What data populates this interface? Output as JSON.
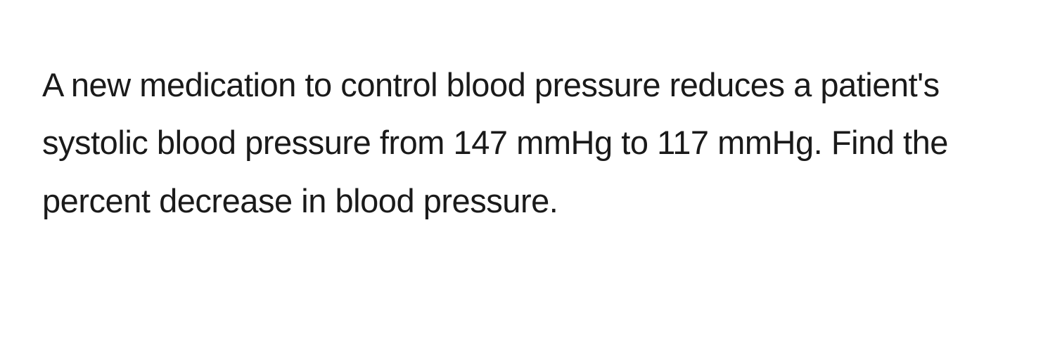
{
  "problem": {
    "text": "A new medication to control blood pressure reduces a patient's systolic blood pressure from 147 mmHg to 117 mmHg. Find the percent decrease in blood pressure.",
    "text_color": "#1a1a1a",
    "background_color": "#ffffff",
    "font_size": 47,
    "line_height": 1.75
  }
}
